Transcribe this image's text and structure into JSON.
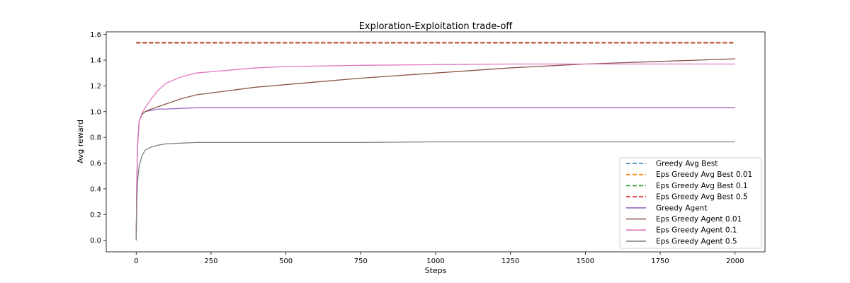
{
  "chart_data": {
    "type": "line",
    "title": "Exploration-Exploitation trade-off",
    "xlabel": "Steps",
    "ylabel": "Avg reward",
    "xlim": [
      -100,
      2100
    ],
    "ylim": [
      -0.09,
      1.62
    ],
    "x_ticks": [
      0,
      250,
      500,
      750,
      1000,
      1250,
      1500,
      1750,
      2000
    ],
    "x_tick_labels": [
      "0",
      "250",
      "500",
      "750",
      "1000",
      "1250",
      "1500",
      "1750",
      "2000"
    ],
    "y_ticks": [
      0.0,
      0.2,
      0.4,
      0.6,
      0.8,
      1.0,
      1.2,
      1.4,
      1.6
    ],
    "y_tick_labels": [
      "0.0",
      "0.2",
      "0.4",
      "0.6",
      "0.8",
      "1.0",
      "1.2",
      "1.4",
      "1.6"
    ],
    "grid": false,
    "legend_position": "lower-right",
    "series": [
      {
        "name": "Greedy Avg Best",
        "color": "#1f77b4",
        "style": "dashed",
        "x": [
          0,
          2000
        ],
        "y": [
          1.535,
          1.535
        ]
      },
      {
        "name": "Eps Greedy Avg Best 0.01",
        "color": "#ff7f0e",
        "style": "dashed",
        "x": [
          0,
          2000
        ],
        "y": [
          1.535,
          1.535
        ]
      },
      {
        "name": "Eps Greedy Avg Best 0.1",
        "color": "#2ca02c",
        "style": "dashed",
        "x": [
          0,
          2000
        ],
        "y": [
          1.535,
          1.535
        ]
      },
      {
        "name": "Eps Greedy Avg Best 0.5",
        "color": "#d62728",
        "style": "dashed",
        "x": [
          0,
          2000
        ],
        "y": [
          1.535,
          1.535
        ]
      },
      {
        "name": "Greedy Agent",
        "color": "#9467bd",
        "style": "solid",
        "x": [
          0,
          2,
          5,
          10,
          20,
          30,
          50,
          75,
          100,
          150,
          200,
          300,
          500,
          750,
          1000,
          1250,
          1500,
          1750,
          2000
        ],
        "y": [
          0.0,
          0.45,
          0.75,
          0.93,
          0.98,
          1.0,
          1.01,
          1.02,
          1.02,
          1.025,
          1.03,
          1.03,
          1.03,
          1.03,
          1.03,
          1.03,
          1.03,
          1.03,
          1.03
        ]
      },
      {
        "name": "Eps Greedy Agent 0.01",
        "color": "#8c564b",
        "style": "solid",
        "x": [
          0,
          2,
          5,
          10,
          20,
          30,
          50,
          75,
          100,
          150,
          200,
          250,
          300,
          400,
          500,
          600,
          750,
          1000,
          1250,
          1500,
          1750,
          2000
        ],
        "y": [
          0.0,
          0.45,
          0.75,
          0.93,
          0.98,
          1.0,
          1.02,
          1.04,
          1.06,
          1.1,
          1.13,
          1.145,
          1.16,
          1.19,
          1.21,
          1.23,
          1.26,
          1.3,
          1.34,
          1.37,
          1.39,
          1.41
        ]
      },
      {
        "name": "Eps Greedy Agent 0.1",
        "color": "#e377c2",
        "style": "solid",
        "x": [
          0,
          2,
          5,
          10,
          20,
          30,
          50,
          75,
          100,
          150,
          200,
          250,
          300,
          400,
          500,
          750,
          1000,
          1250,
          1500,
          1750,
          2000
        ],
        "y": [
          0.0,
          0.45,
          0.75,
          0.93,
          0.99,
          1.03,
          1.1,
          1.17,
          1.22,
          1.27,
          1.3,
          1.31,
          1.32,
          1.34,
          1.35,
          1.36,
          1.365,
          1.37,
          1.37,
          1.37,
          1.37
        ]
      },
      {
        "name": "Eps Greedy Agent 0.5",
        "color": "#7f7f7f",
        "style": "solid",
        "x": [
          0,
          2,
          5,
          10,
          20,
          30,
          50,
          75,
          100,
          150,
          200,
          300,
          500,
          750,
          1000,
          1250,
          1500,
          1750,
          2000
        ],
        "y": [
          0.0,
          0.3,
          0.47,
          0.58,
          0.66,
          0.7,
          0.725,
          0.74,
          0.75,
          0.755,
          0.76,
          0.76,
          0.76,
          0.76,
          0.765,
          0.765,
          0.765,
          0.765,
          0.765
        ]
      }
    ]
  }
}
